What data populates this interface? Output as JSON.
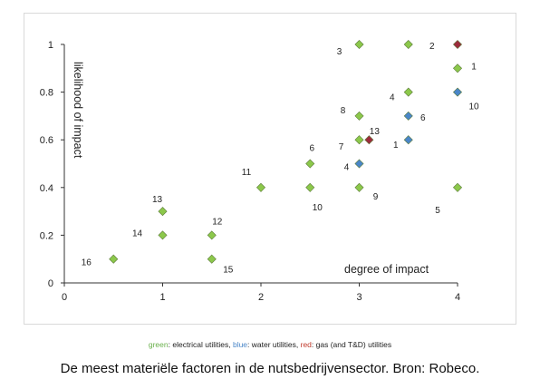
{
  "chart_data": {
    "type": "scatter",
    "xlabel": "degree of impact",
    "ylabel": "likelihood of impact",
    "xlim": [
      0,
      4
    ],
    "ylim": [
      0,
      1
    ],
    "xticks": [
      "0",
      "1",
      "2",
      "3",
      "4"
    ],
    "yticks": [
      "0",
      "0.2",
      "0.4",
      "0.6",
      "0.8",
      "1"
    ],
    "grid": false,
    "series": [
      {
        "name": "electrical utilities",
        "color": "#8cc84b",
        "points": [
          {
            "x": 0.5,
            "y": 0.1,
            "label": "16"
          },
          {
            "x": 1.0,
            "y": 0.2,
            "label": "14"
          },
          {
            "x": 1.0,
            "y": 0.3,
            "label": "13"
          },
          {
            "x": 1.5,
            "y": 0.2,
            "label": "12"
          },
          {
            "x": 1.5,
            "y": 0.1,
            "label": "15"
          },
          {
            "x": 2.0,
            "y": 0.4,
            "label": "11"
          },
          {
            "x": 2.5,
            "y": 0.5,
            "label": "6"
          },
          {
            "x": 2.5,
            "y": 0.4,
            "label": "10"
          },
          {
            "x": 3.0,
            "y": 1.0,
            "label": "3"
          },
          {
            "x": 3.0,
            "y": 0.7,
            "label": "8"
          },
          {
            "x": 3.0,
            "y": 0.6,
            "label": "7"
          },
          {
            "x": 3.0,
            "y": 0.4,
            "label": "9"
          },
          {
            "x": 3.5,
            "y": 1.0,
            "label": "2"
          },
          {
            "x": 3.5,
            "y": 0.8,
            "label": "4"
          },
          {
            "x": 4.0,
            "y": 0.9,
            "label": "1"
          },
          {
            "x": 4.0,
            "y": 0.4,
            "label": "5"
          }
        ]
      },
      {
        "name": "water utilities",
        "color": "#4a86c8",
        "points": [
          {
            "x": 3.0,
            "y": 0.5,
            "label": "4"
          },
          {
            "x": 3.5,
            "y": 0.7,
            "label": "6"
          },
          {
            "x": 3.5,
            "y": 0.6,
            "label": "1"
          },
          {
            "x": 4.0,
            "y": 0.8,
            "label": "10"
          }
        ]
      },
      {
        "name": "gas (and T&D) utilities",
        "color": "#9b2c3c",
        "points": [
          {
            "x": 3.1,
            "y": 0.6,
            "label": "13"
          },
          {
            "x": 4.0,
            "y": 1.0,
            "label": ""
          }
        ]
      }
    ]
  },
  "legend": {
    "green_word": "green",
    "green_rest": ": electrical utilities, ",
    "blue_word": "blue",
    "blue_rest": ": water utilities, ",
    "red_word": "red",
    "red_rest": ": gas (and T&D) utilities",
    "colors": {
      "green": "#6ab04c",
      "blue": "#4a86c8",
      "red": "#c0392b"
    }
  },
  "caption": "De meest materiële factoren in de nutsbedrijvensector. Bron: Robeco."
}
